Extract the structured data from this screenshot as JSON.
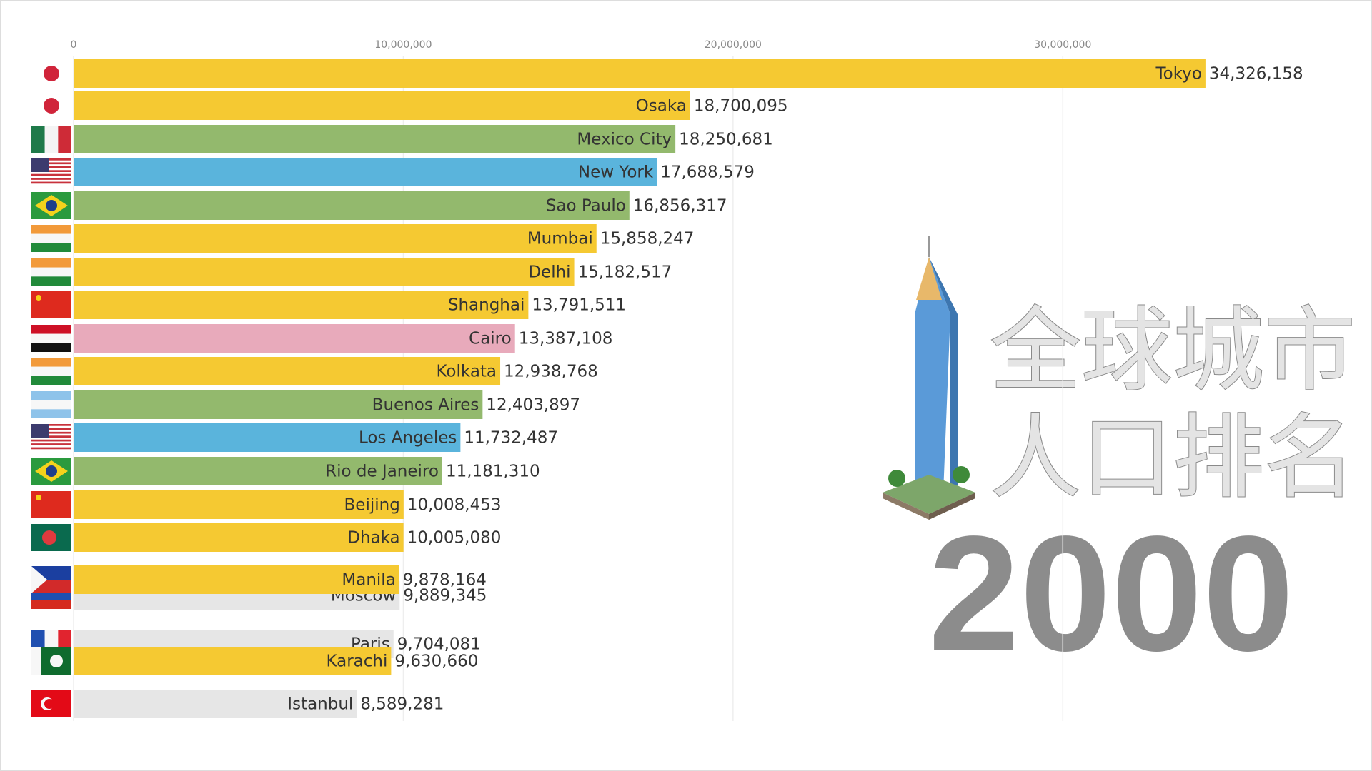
{
  "chart_data": {
    "type": "bar",
    "orientation": "horizontal",
    "title_lines": [
      "全球城市",
      "人口排名"
    ],
    "year": "2000",
    "categories": [
      "Tokyo",
      "Osaka",
      "Mexico City",
      "New York",
      "Sao Paulo",
      "Mumbai",
      "Delhi",
      "Shanghai",
      "Cairo",
      "Kolkata",
      "Buenos Aires",
      "Los Angeles",
      "Rio de Janeiro",
      "Beijing",
      "Dhaka",
      "Manila",
      "Moscow",
      "Paris",
      "Karachi",
      "Istanbul"
    ],
    "values": [
      34326158,
      18700095,
      18250681,
      17688579,
      16856317,
      15858247,
      15182517,
      13791511,
      13387108,
      12938768,
      12403897,
      11732487,
      11181310,
      10008453,
      10005080,
      9878164,
      9889345,
      9704081,
      9630660,
      8589281
    ],
    "value_labels": [
      "34,326,158",
      "18,700,095",
      "18,250,681",
      "17,688,579",
      "16,856,317",
      "15,858,247",
      "15,182,517",
      "13,791,511",
      "13,387,108",
      "12,938,768",
      "12,403,897",
      "11,732,487",
      "11,181,310",
      "10,008,453",
      "10,005,080",
      "9,878,164",
      "9,889,345",
      "9,704,081",
      "9,630,660",
      "8,589,281"
    ],
    "colors": [
      "#f5c932",
      "#f5c932",
      "#93b96d",
      "#5ab4dc",
      "#93b96d",
      "#f5c932",
      "#f5c932",
      "#f5c932",
      "#e8aabb",
      "#f5c932",
      "#93b96d",
      "#5ab4dc",
      "#93b96d",
      "#f5c932",
      "#f5c932",
      "#f5c932",
      "#e6e6e6",
      "#e6e6e6",
      "#f5c932",
      "#e6e6e6"
    ],
    "xlim": [
      0,
      35000000
    ],
    "xticks": [
      0,
      {
        "value": 10000000,
        "label": "10,000,000"
      },
      {
        "value": 20000000,
        "label": "20,000,000"
      },
      {
        "value": 30000000,
        "label": "30,000,000"
      }
    ],
    "grid": true
  }
}
